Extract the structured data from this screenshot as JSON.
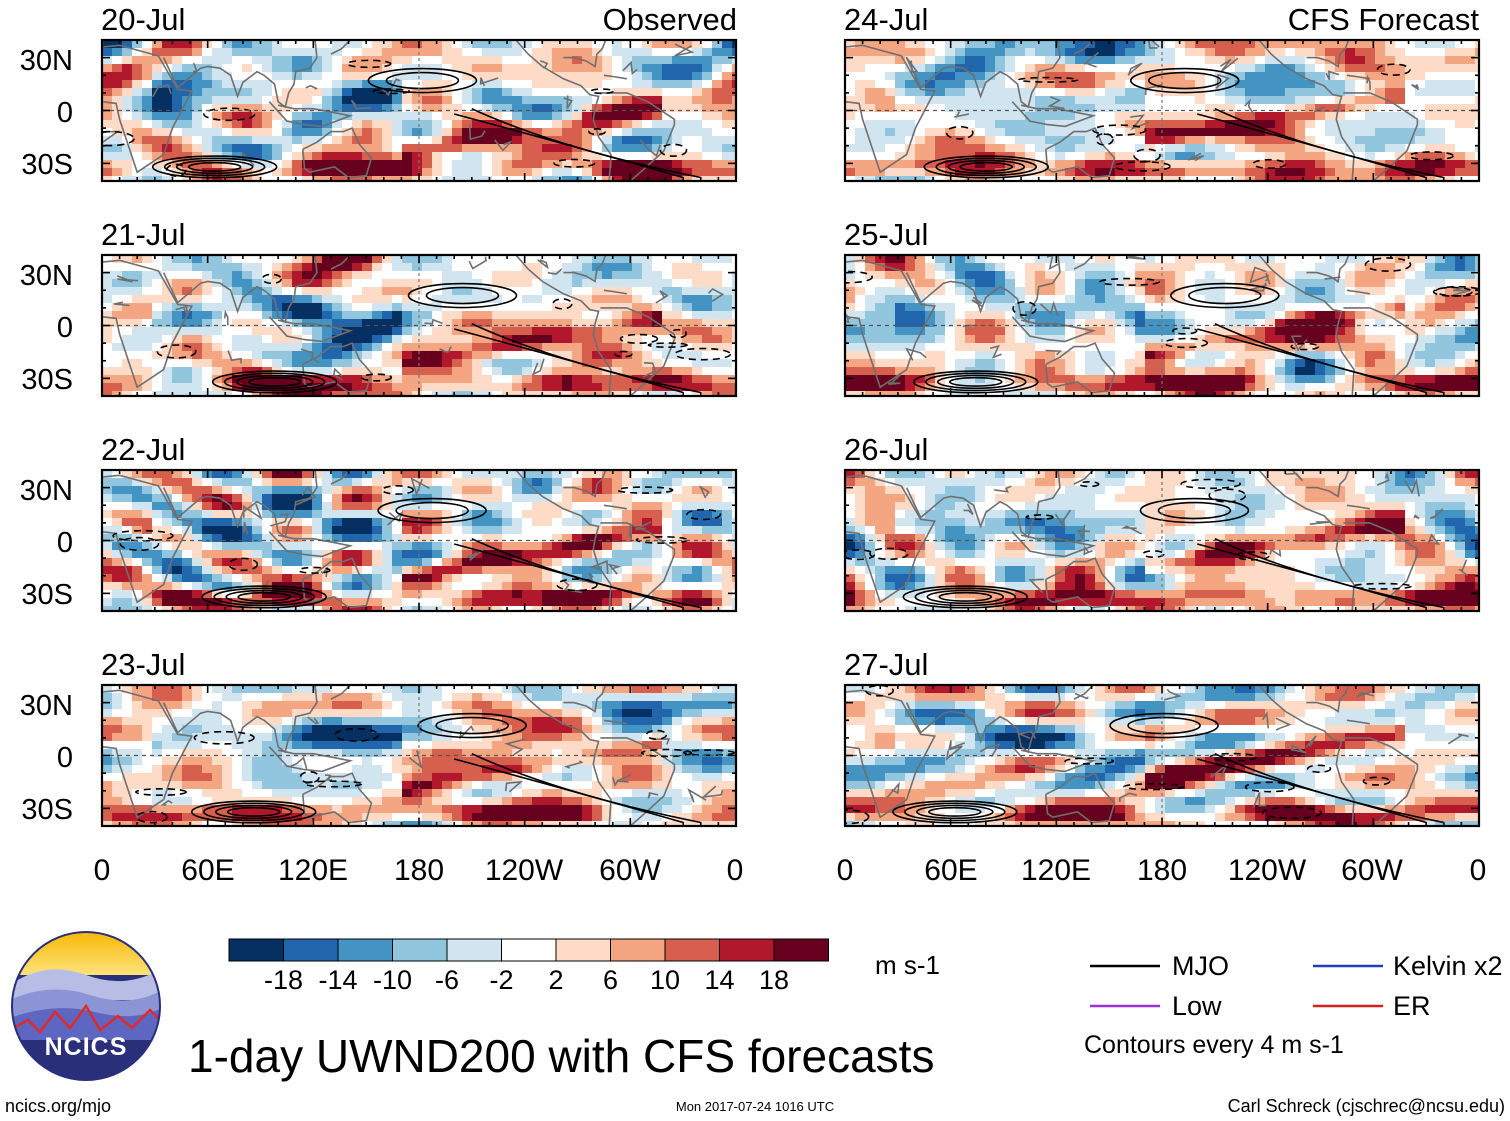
{
  "chart_data": {
    "type": "heatmap",
    "title": "1-day UWND200 with CFS forecasts",
    "variable": "UWND200",
    "units": "m s-1",
    "colorbar": {
      "tick_labels": [
        "-18",
        "-14",
        "-10",
        "-6",
        "-2",
        "2",
        "6",
        "10",
        "14",
        "18"
      ],
      "colors": [
        "#053061",
        "#2166ac",
        "#4393c3",
        "#92c5de",
        "#d1e5f0",
        "#ffffff",
        "#fddbc7",
        "#f4a582",
        "#d6604d",
        "#b2182b",
        "#67001f"
      ]
    },
    "x_axis": {
      "tick_labels": [
        "0",
        "60E",
        "120E",
        "180",
        "120W",
        "60W",
        "0"
      ],
      "range_degrees_east": [
        0,
        360
      ]
    },
    "y_axis": {
      "tick_labels": [
        "30N",
        "0",
        "30S"
      ],
      "range_degrees": [
        -40,
        40
      ]
    },
    "columns": [
      {
        "label": "Observed",
        "panels": [
          {
            "date": "20-Jul",
            "pattern_seed": 3
          },
          {
            "date": "21-Jul",
            "pattern_seed": 4
          },
          {
            "date": "22-Jul",
            "pattern_seed": 5
          },
          {
            "date": "23-Jul",
            "pattern_seed": 6
          }
        ]
      },
      {
        "label": "CFS Forecast",
        "panels": [
          {
            "date": "24-Jul",
            "pattern_seed": 7
          },
          {
            "date": "25-Jul",
            "pattern_seed": 8
          },
          {
            "date": "26-Jul",
            "pattern_seed": 9
          },
          {
            "date": "27-Jul",
            "pattern_seed": 10
          }
        ]
      }
    ],
    "legend": {
      "items": [
        {
          "label": "MJO",
          "color": "#000000"
        },
        {
          "label": "Kelvin x2",
          "color": "#1f3fbf"
        },
        {
          "label": "Low",
          "color": "#9b30d9"
        },
        {
          "label": "ER",
          "color": "#d62020"
        }
      ],
      "note": "Contours every 4 m s-1"
    }
  },
  "logo": {
    "text": "NCICS"
  },
  "footer": {
    "left": "ncics.org/mjo",
    "center": "Mon 2017-07-24 1016 UTC",
    "right": "Carl Schreck (cjschrec@ncsu.edu)"
  }
}
